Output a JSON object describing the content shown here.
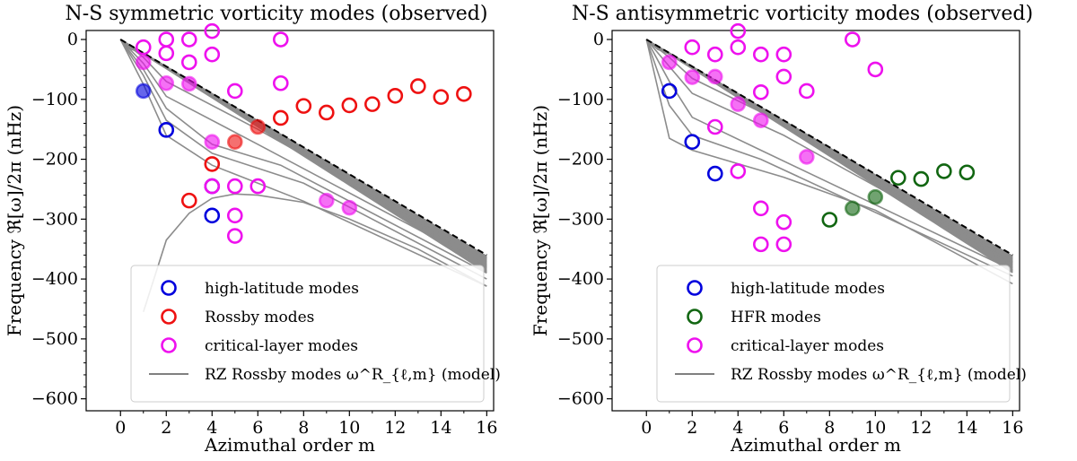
{
  "chart_data": [
    {
      "type": "scatter",
      "title": "N-S symmetric vorticity modes (observed)",
      "xlabel": "Azimuthal order m",
      "ylabel": "Frequency ℜ[ω]/2π (nHz)",
      "xlim": [
        -1.5,
        16.3
      ],
      "ylim": [
        -620,
        15
      ],
      "xticks": [
        0,
        2,
        4,
        6,
        8,
        10,
        12,
        14,
        16
      ],
      "yticks": [
        0,
        -100,
        -200,
        -300,
        -400,
        -500,
        -600
      ],
      "xtick_labels": [
        "0",
        "2",
        "4",
        "6",
        "8",
        "10",
        "12",
        "14",
        "16"
      ],
      "ytick_labels": [
        "0",
        "−100",
        "−200",
        "−300",
        "−400",
        "−500",
        "−600"
      ],
      "legend_position": "lower-right",
      "legend": [
        {
          "label": "high-latitude modes",
          "kind": "circle",
          "color": "#0000dd"
        },
        {
          "label": "Rossby modes",
          "kind": "circle",
          "color": "#ee1111"
        },
        {
          "label": "critical-layer modes",
          "kind": "circle",
          "color": "#ee11ee"
        },
        {
          "label": "RZ Rossby modes ω^R_{ℓ,m} (model)",
          "kind": "line",
          "color": "#808080"
        }
      ],
      "series": [
        {
          "name": "high-latitude modes",
          "color": "#0000dd",
          "points": [
            {
              "x": 1,
              "y": -86,
              "filled": true
            },
            {
              "x": 2,
              "y": -151,
              "filled": false
            },
            {
              "x": 4,
              "y": -245,
              "filled": false
            },
            {
              "x": 4,
              "y": -294,
              "filled": false
            }
          ]
        },
        {
          "name": "Rossby modes",
          "color": "#ee1111",
          "points": [
            {
              "x": 3,
              "y": -269,
              "filled": false
            },
            {
              "x": 4,
              "y": -208,
              "filled": false
            },
            {
              "x": 5,
              "y": -171,
              "filled": true
            },
            {
              "x": 6,
              "y": -146,
              "filled": true
            },
            {
              "x": 7,
              "y": -131,
              "filled": false
            },
            {
              "x": 8,
              "y": -111,
              "filled": false
            },
            {
              "x": 9,
              "y": -122,
              "filled": false
            },
            {
              "x": 10,
              "y": -110,
              "filled": false
            },
            {
              "x": 11,
              "y": -108,
              "filled": false
            },
            {
              "x": 12,
              "y": -94,
              "filled": false
            },
            {
              "x": 13,
              "y": -78,
              "filled": false
            },
            {
              "x": 14,
              "y": -96,
              "filled": false
            },
            {
              "x": 15,
              "y": -91,
              "filled": false
            }
          ]
        },
        {
          "name": "critical-layer modes",
          "color": "#ee11ee",
          "points": [
            {
              "x": 1,
              "y": -13,
              "filled": false
            },
            {
              "x": 1,
              "y": -38,
              "filled": true
            },
            {
              "x": 2,
              "y": 0,
              "filled": false
            },
            {
              "x": 2,
              "y": -23,
              "filled": false
            },
            {
              "x": 2,
              "y": -73,
              "filled": true
            },
            {
              "x": 3,
              "y": 0,
              "filled": false
            },
            {
              "x": 3,
              "y": -38,
              "filled": false
            },
            {
              "x": 3,
              "y": -74,
              "filled": true
            },
            {
              "x": 4,
              "y": 14,
              "filled": false
            },
            {
              "x": 4,
              "y": -25,
              "filled": false
            },
            {
              "x": 4,
              "y": -171,
              "filled": true
            },
            {
              "x": 4,
              "y": -245,
              "filled": false
            },
            {
              "x": 5,
              "y": -86,
              "filled": false
            },
            {
              "x": 5,
              "y": -245,
              "filled": false
            },
            {
              "x": 5,
              "y": -294,
              "filled": false
            },
            {
              "x": 5,
              "y": -328,
              "filled": false
            },
            {
              "x": 6,
              "y": -245,
              "filled": false
            },
            {
              "x": 7,
              "y": 0,
              "filled": false
            },
            {
              "x": 7,
              "y": -73,
              "filled": false
            },
            {
              "x": 9,
              "y": -269,
              "filled": true
            },
            {
              "x": 10,
              "y": -281,
              "filled": true
            }
          ]
        }
      ]
    },
    {
      "type": "scatter",
      "title": "N-S antisymmetric vorticity modes (observed)",
      "xlabel": "Azimuthal order m",
      "ylabel": "Frequency ℜ[ω]/2π (nHz)",
      "xlim": [
        -1.5,
        16.3
      ],
      "ylim": [
        -620,
        15
      ],
      "xticks": [
        0,
        2,
        4,
        6,
        8,
        10,
        12,
        14,
        16
      ],
      "yticks": [
        0,
        -100,
        -200,
        -300,
        -400,
        -500,
        -600
      ],
      "xtick_labels": [
        "0",
        "2",
        "4",
        "6",
        "8",
        "10",
        "12",
        "14",
        "16"
      ],
      "ytick_labels": [
        "0",
        "−100",
        "−200",
        "−300",
        "−400",
        "−500",
        "−600"
      ],
      "legend_position": "lower-right",
      "legend": [
        {
          "label": "high-latitude modes",
          "kind": "circle",
          "color": "#0000dd"
        },
        {
          "label": "HFR modes",
          "kind": "circle",
          "color": "#116611"
        },
        {
          "label": "critical-layer modes",
          "kind": "circle",
          "color": "#ee11ee"
        },
        {
          "label": "RZ Rossby modes ω^R_{ℓ,m} (model)",
          "kind": "line",
          "color": "#808080"
        }
      ],
      "series": [
        {
          "name": "high-latitude modes",
          "color": "#0000dd",
          "points": [
            {
              "x": 1,
              "y": -86,
              "filled": false
            },
            {
              "x": 2,
              "y": -171,
              "filled": false
            },
            {
              "x": 3,
              "y": -224,
              "filled": false
            }
          ]
        },
        {
          "name": "HFR modes",
          "color": "#116611",
          "points": [
            {
              "x": 8,
              "y": -301,
              "filled": false
            },
            {
              "x": 9,
              "y": -282,
              "filled": true
            },
            {
              "x": 10,
              "y": -263,
              "filled": true
            },
            {
              "x": 11,
              "y": -231,
              "filled": false
            },
            {
              "x": 12,
              "y": -233,
              "filled": false
            },
            {
              "x": 13,
              "y": -220,
              "filled": false
            },
            {
              "x": 14,
              "y": -222,
              "filled": false
            }
          ]
        },
        {
          "name": "critical-layer modes",
          "color": "#ee11ee",
          "points": [
            {
              "x": 1,
              "y": -38,
              "filled": true
            },
            {
              "x": 2,
              "y": -13,
              "filled": false
            },
            {
              "x": 2,
              "y": -63,
              "filled": true
            },
            {
              "x": 3,
              "y": -25,
              "filled": false
            },
            {
              "x": 3,
              "y": -62,
              "filled": true
            },
            {
              "x": 3,
              "y": -146,
              "filled": false
            },
            {
              "x": 4,
              "y": 14,
              "filled": false
            },
            {
              "x": 4,
              "y": -13,
              "filled": false
            },
            {
              "x": 4,
              "y": -108,
              "filled": true
            },
            {
              "x": 4,
              "y": -220,
              "filled": false
            },
            {
              "x": 5,
              "y": -25,
              "filled": false
            },
            {
              "x": 5,
              "y": -88,
              "filled": false
            },
            {
              "x": 5,
              "y": -135,
              "filled": true
            },
            {
              "x": 5,
              "y": -282,
              "filled": false
            },
            {
              "x": 5,
              "y": -342,
              "filled": false
            },
            {
              "x": 6,
              "y": -25,
              "filled": false
            },
            {
              "x": 6,
              "y": -62,
              "filled": false
            },
            {
              "x": 6,
              "y": -305,
              "filled": false
            },
            {
              "x": 6,
              "y": -342,
              "filled": false
            },
            {
              "x": 7,
              "y": -86,
              "filled": false
            },
            {
              "x": 7,
              "y": -196,
              "filled": true
            },
            {
              "x": 9,
              "y": 0,
              "filled": false
            },
            {
              "x": 10,
              "y": -50,
              "filled": false
            }
          ]
        }
      ]
    }
  ]
}
